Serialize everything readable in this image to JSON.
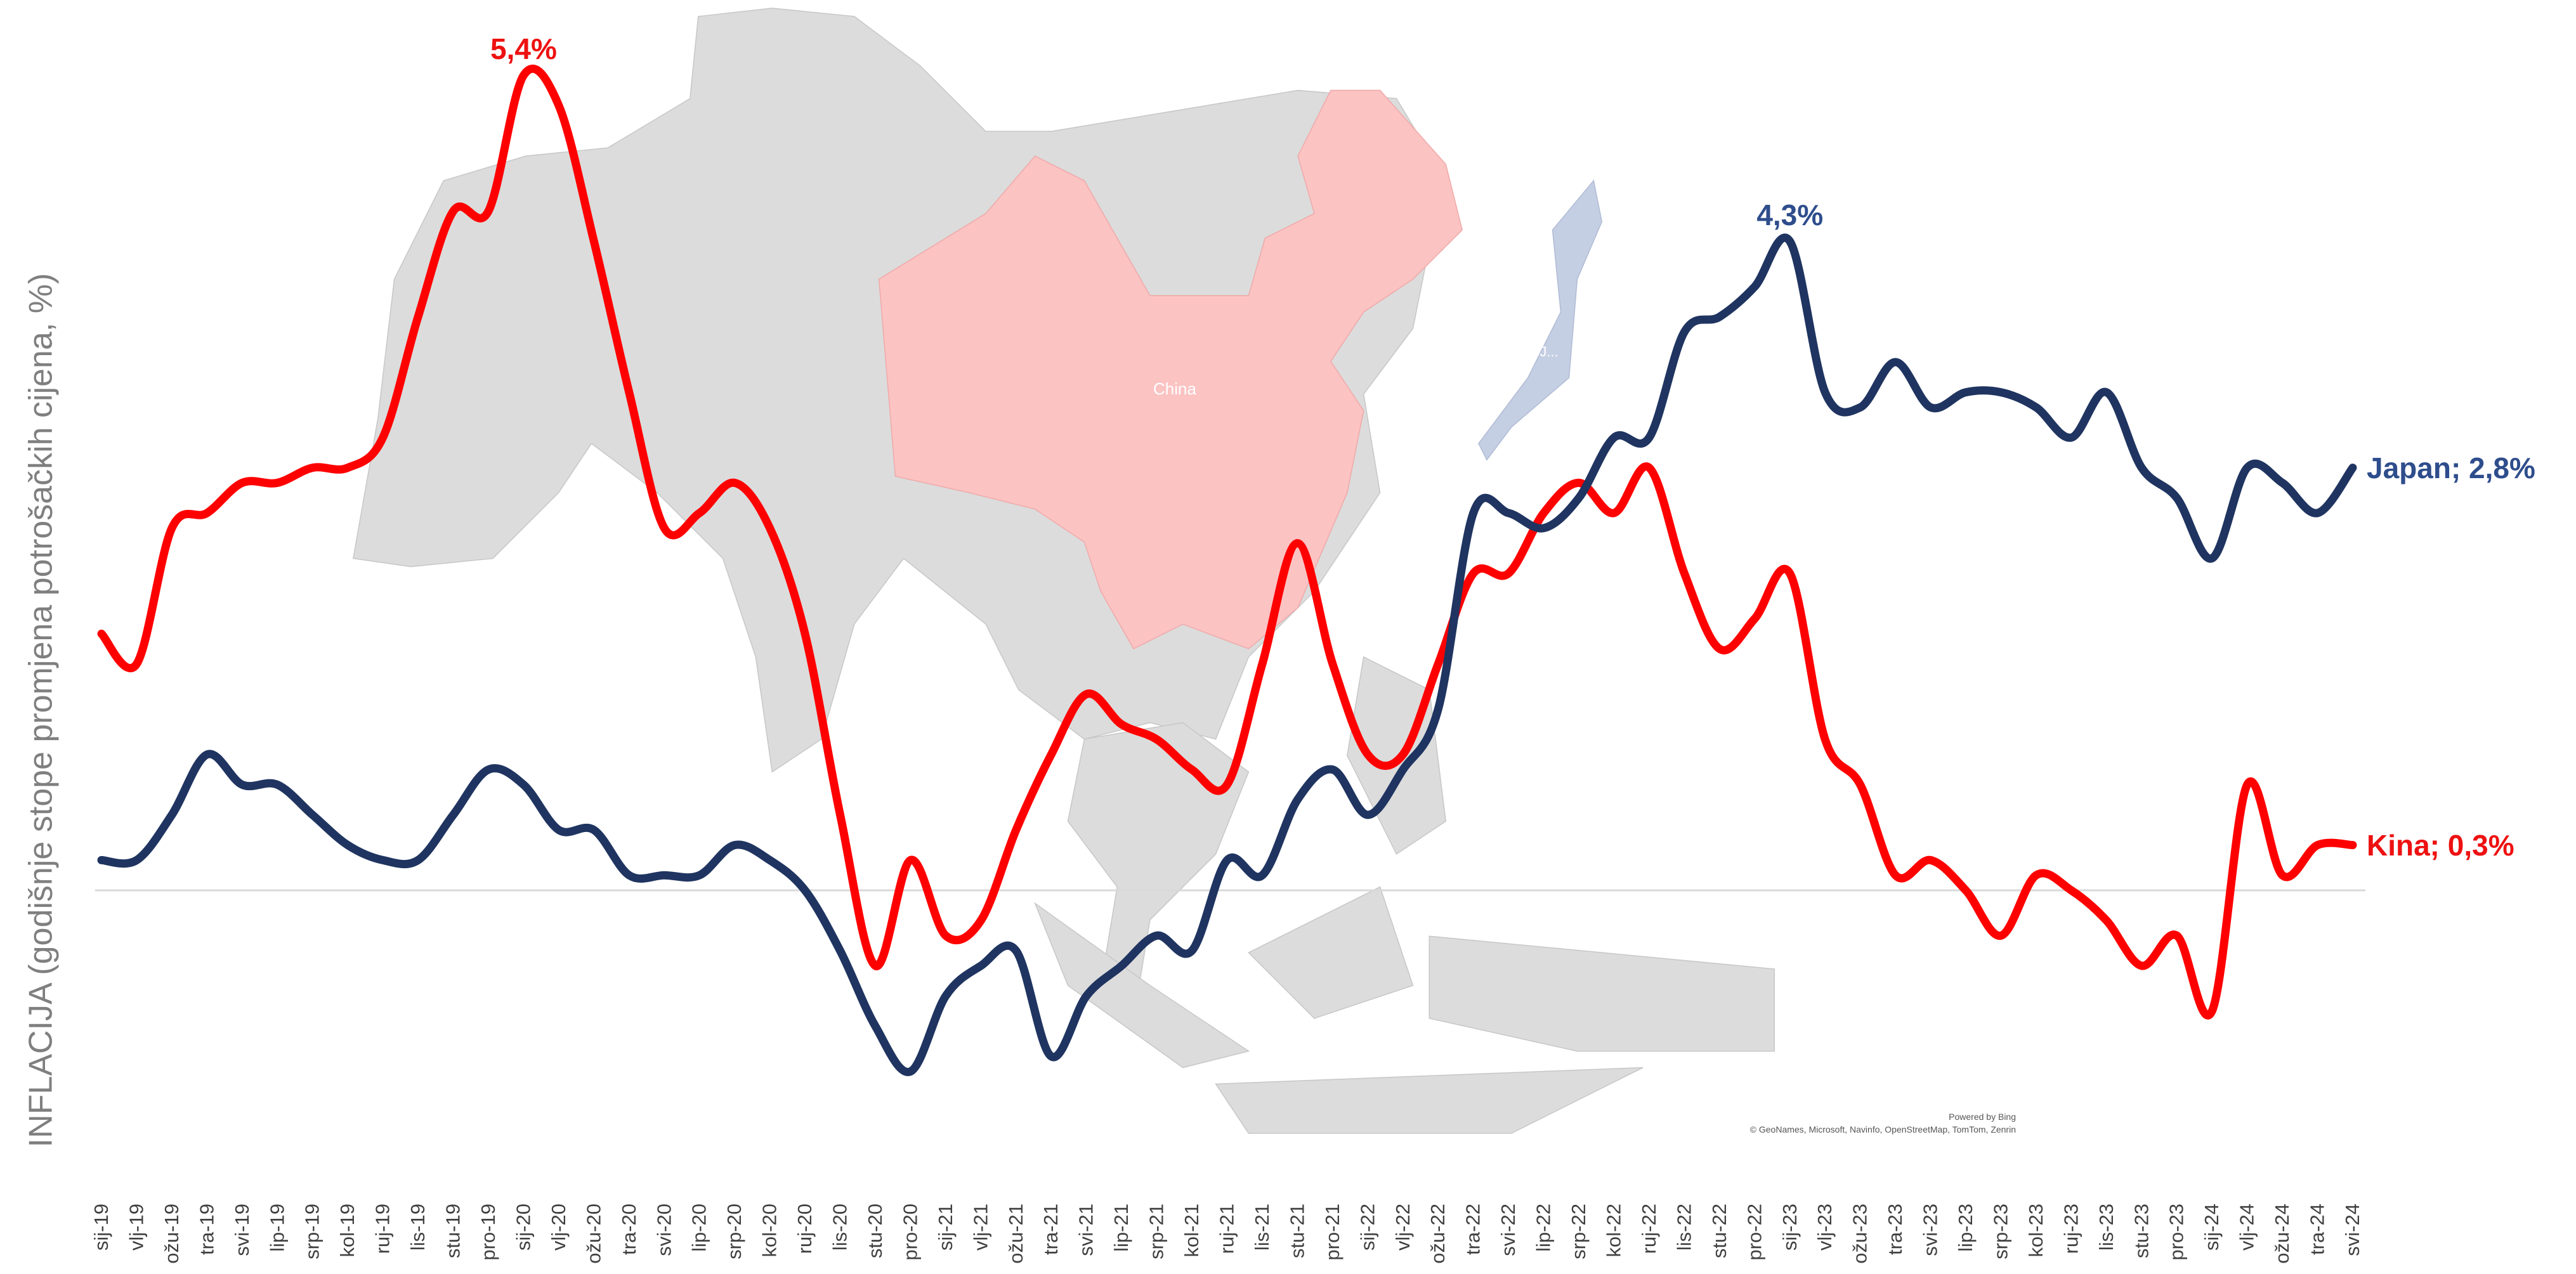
{
  "chart_data": {
    "type": "line",
    "y_axis_label": "INFLACIJA (godišnje stope promjena potrošačkih cijena, %)",
    "categories": [
      "sij-19",
      "vlj-19",
      "ožu-19",
      "tra-19",
      "svi-19",
      "lip-19",
      "srp-19",
      "kol-19",
      "ruj-19",
      "lis-19",
      "stu-19",
      "pro-19",
      "sij-20",
      "vlj-20",
      "ožu-20",
      "tra-20",
      "svi-20",
      "lip-20",
      "srp-20",
      "kol-20",
      "ruj-20",
      "lis-20",
      "stu-20",
      "pro-20",
      "sij-21",
      "vlj-21",
      "ožu-21",
      "tra-21",
      "svi-21",
      "lip-21",
      "srp-21",
      "kol-21",
      "ruj-21",
      "lis-21",
      "stu-21",
      "pro-21",
      "sij-22",
      "vlj-22",
      "ožu-22",
      "tra-22",
      "svi-22",
      "lip-22",
      "srp-22",
      "kol-22",
      "ruj-22",
      "lis-22",
      "stu-22",
      "pro-22",
      "sij-23",
      "vlj-23",
      "ožu-23",
      "tra-23",
      "svi-23",
      "lip-23",
      "srp-23",
      "kol-23",
      "ruj-23",
      "lis-23",
      "stu-23",
      "pro-23",
      "sij-24",
      "vlj-24",
      "ožu-24",
      "tra-24",
      "svi-24"
    ],
    "series": [
      {
        "name": "Kina",
        "color": "#ff0000",
        "label_color": "#ee1111",
        "values": [
          1.7,
          1.5,
          2.4,
          2.5,
          2.7,
          2.7,
          2.8,
          2.8,
          3.0,
          3.8,
          4.5,
          4.5,
          5.4,
          5.2,
          4.3,
          3.3,
          2.4,
          2.5,
          2.7,
          2.4,
          1.7,
          0.5,
          -0.5,
          0.2,
          -0.3,
          -0.2,
          0.4,
          0.9,
          1.3,
          1.1,
          1.0,
          0.8,
          0.7,
          1.5,
          2.3,
          1.5,
          0.9,
          0.9,
          1.5,
          2.1,
          2.1,
          2.5,
          2.7,
          2.5,
          2.8,
          2.1,
          1.6,
          1.8,
          2.1,
          1.0,
          0.7,
          0.1,
          0.2,
          0.0,
          -0.3,
          0.1,
          0.0,
          -0.2,
          -0.5,
          -0.3,
          -0.8,
          0.7,
          0.1,
          0.3,
          0.3
        ],
        "value_labels": [
          null,
          null,
          null,
          null,
          null,
          null,
          null,
          null,
          null,
          null,
          null,
          null,
          "5,4%",
          null,
          null,
          null,
          null,
          null,
          null,
          null,
          null,
          null,
          null,
          null,
          null,
          null,
          null,
          null,
          null,
          null,
          null,
          null,
          null,
          null,
          null,
          null,
          null,
          null,
          null,
          null,
          null,
          null,
          null,
          null,
          null,
          null,
          null,
          null,
          null,
          null,
          null,
          null,
          null,
          null,
          null,
          null,
          null,
          null,
          null,
          null,
          null,
          null,
          null,
          null,
          "Kina; 0,3%"
        ]
      },
      {
        "name": "Japan",
        "color": "#1f3460",
        "label_color": "#2e4d8c",
        "values": [
          0.2,
          0.2,
          0.5,
          0.9,
          0.7,
          0.7,
          0.5,
          0.3,
          0.2,
          0.2,
          0.5,
          0.8,
          0.7,
          0.4,
          0.4,
          0.1,
          0.1,
          0.1,
          0.3,
          0.2,
          0.0,
          -0.4,
          -0.9,
          -1.2,
          -0.7,
          -0.5,
          -0.4,
          -1.1,
          -0.7,
          -0.5,
          -0.3,
          -0.4,
          0.2,
          0.1,
          0.6,
          0.8,
          0.5,
          0.8,
          1.2,
          2.5,
          2.5,
          2.4,
          2.6,
          3.0,
          3.0,
          3.7,
          3.8,
          4.0,
          4.3,
          3.3,
          3.2,
          3.5,
          3.2,
          3.3,
          3.3,
          3.2,
          3.0,
          3.3,
          2.8,
          2.6,
          2.2,
          2.8,
          2.7,
          2.5,
          2.8
        ],
        "value_labels": [
          null,
          null,
          null,
          null,
          null,
          null,
          null,
          null,
          null,
          null,
          null,
          null,
          null,
          null,
          null,
          null,
          null,
          null,
          null,
          null,
          null,
          null,
          null,
          null,
          null,
          null,
          null,
          null,
          null,
          null,
          null,
          null,
          null,
          null,
          null,
          null,
          null,
          null,
          null,
          null,
          null,
          null,
          null,
          null,
          null,
          null,
          null,
          null,
          "4,3%",
          null,
          null,
          null,
          null,
          null,
          null,
          null,
          null,
          null,
          null,
          null,
          null,
          null,
          null,
          null,
          "Japan; 2,8%"
        ]
      }
    ],
    "ylim": [
      -1.5,
      5.5
    ],
    "yticks": [
      0
    ],
    "show_ytick_labels": false,
    "grid": true,
    "smooth": true,
    "annotations": {
      "map_labels": [
        "China",
        "J..."
      ],
      "attribution": [
        "Powered by Bing",
        "© GeoNames, Microsoft, Navinfo, OpenStreetMap, TomTom, Zenrin"
      ]
    }
  }
}
